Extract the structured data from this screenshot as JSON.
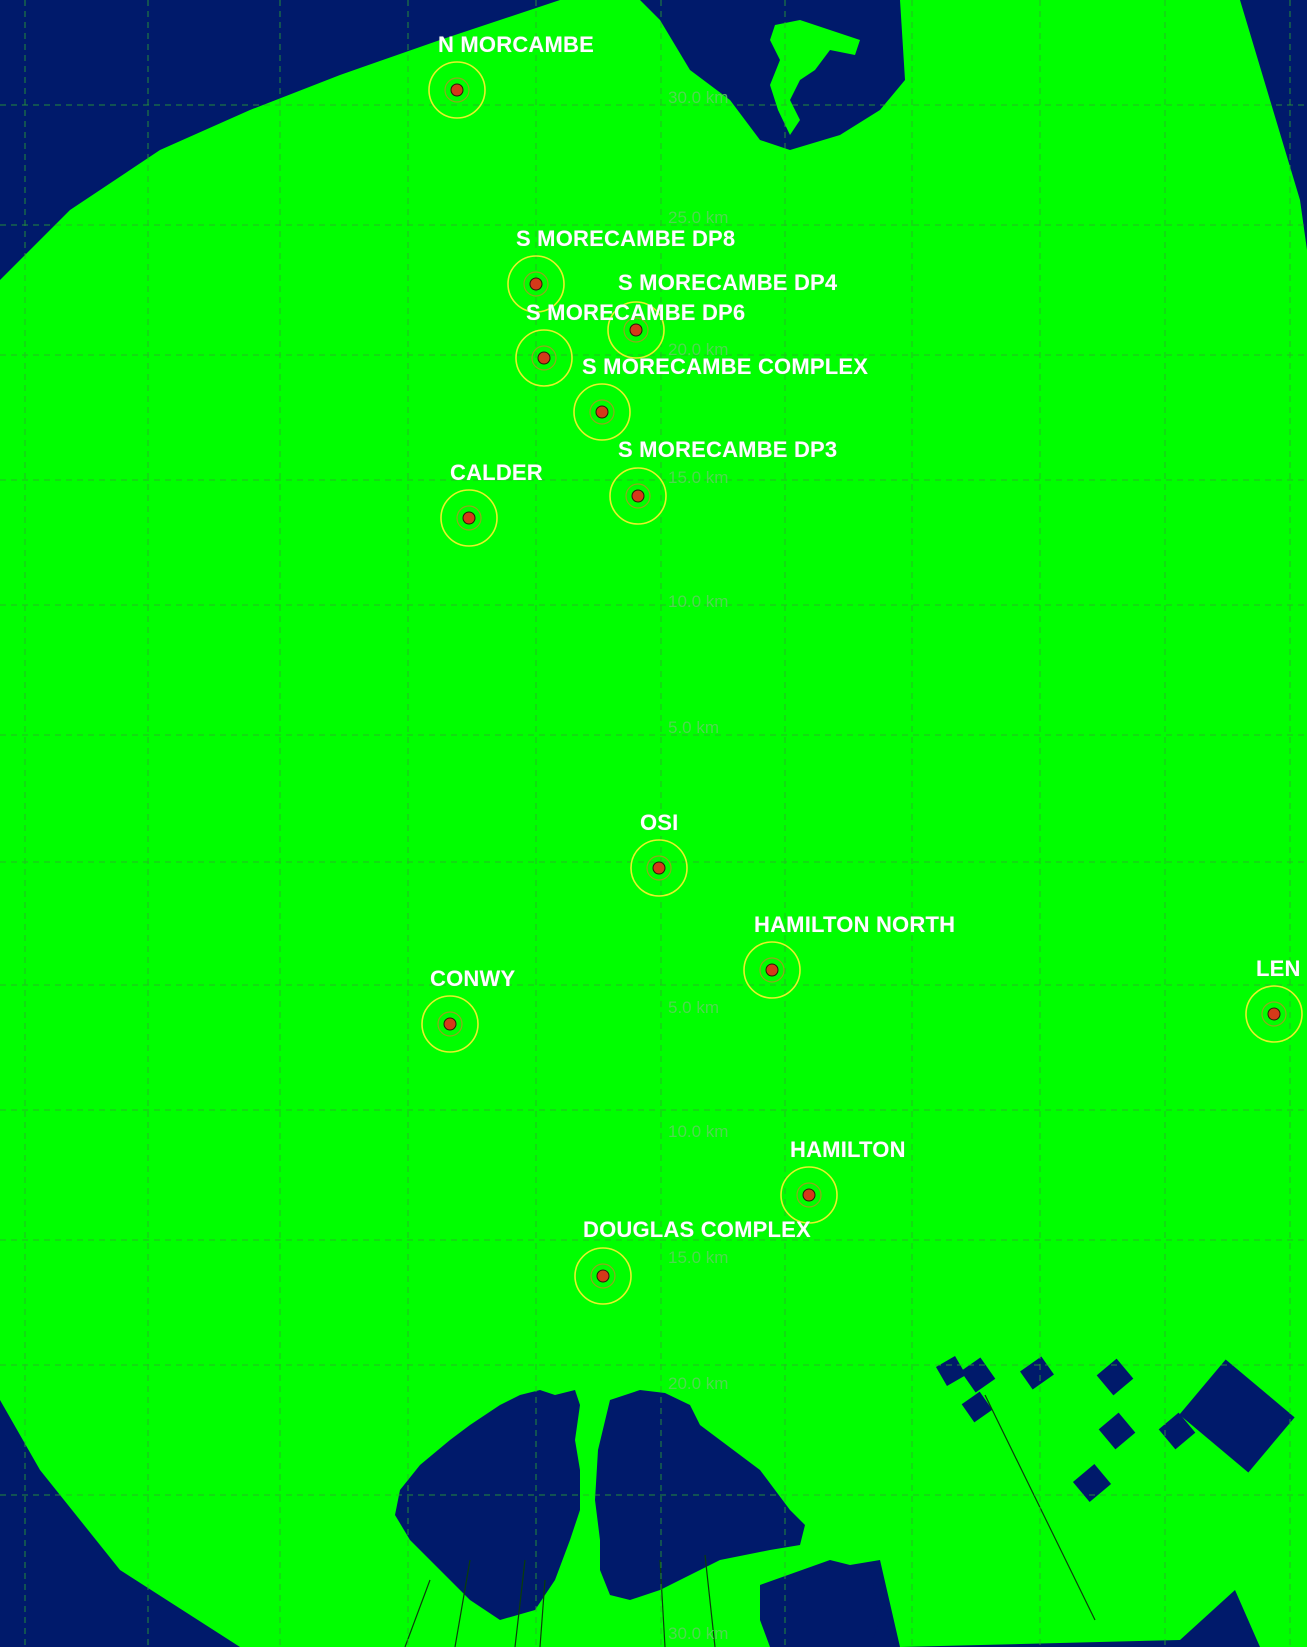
{
  "map": {
    "colors": {
      "coverage": "#00ff00",
      "terrain": "#001a6b",
      "grid": "#2fa82f",
      "ring": "#e6f22a",
      "marker": "#d43a1a",
      "label": "#ffffff",
      "range_label": "#5fcf5f"
    },
    "range_labels": [
      "30.0 km",
      "25.0 km",
      "20.0 km",
      "15.0 km",
      "10.0 km",
      "5.0 km",
      "5.0 km",
      "10.0 km",
      "15.0 km",
      "20.0 km",
      "30.0 km"
    ],
    "sites": [
      {
        "name": "N MORCAMBE"
      },
      {
        "name": "S MORECAMBE DP8"
      },
      {
        "name": "S MORECAMBE DP4"
      },
      {
        "name": "S MORECAMBE DP6"
      },
      {
        "name": "S MORECAMBE COMPLEX"
      },
      {
        "name": "S MORECAMBE DP3"
      },
      {
        "name": "CALDER"
      },
      {
        "name": "OSI"
      },
      {
        "name": "HAMILTON NORTH"
      },
      {
        "name": "CONWY"
      },
      {
        "name": "LEN"
      },
      {
        "name": "HAMILTON"
      },
      {
        "name": "DOUGLAS COMPLEX"
      }
    ]
  }
}
